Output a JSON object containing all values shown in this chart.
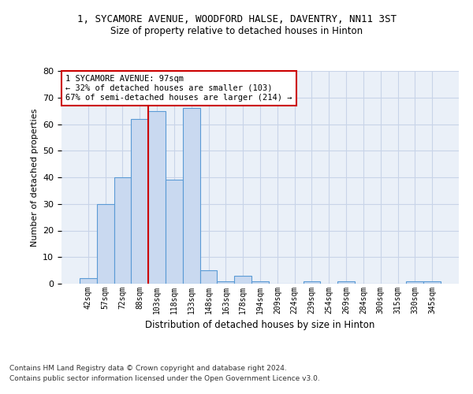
{
  "title_line1": "1, SYCAMORE AVENUE, WOODFORD HALSE, DAVENTRY, NN11 3ST",
  "title_line2": "Size of property relative to detached houses in Hinton",
  "xlabel": "Distribution of detached houses by size in Hinton",
  "ylabel": "Number of detached properties",
  "categories": [
    "42sqm",
    "57sqm",
    "72sqm",
    "88sqm",
    "103sqm",
    "118sqm",
    "133sqm",
    "148sqm",
    "163sqm",
    "178sqm",
    "194sqm",
    "209sqm",
    "224sqm",
    "239sqm",
    "254sqm",
    "269sqm",
    "284sqm",
    "300sqm",
    "315sqm",
    "330sqm",
    "345sqm"
  ],
  "values": [
    2,
    30,
    40,
    62,
    65,
    39,
    66,
    5,
    1,
    3,
    1,
    0,
    0,
    1,
    0,
    1,
    0,
    0,
    0,
    1,
    1
  ],
  "bar_color": "#c9d9f0",
  "bar_edge_color": "#5b9bd5",
  "bar_width": 1.0,
  "vline_x": 3.5,
  "annotation_text": "1 SYCAMORE AVENUE: 97sqm\n← 32% of detached houses are smaller (103)\n67% of semi-detached houses are larger (214) →",
  "annotation_box_color": "#ffffff",
  "annotation_box_edge_color": "#cc0000",
  "vline_color": "#cc0000",
  "ylim": [
    0,
    80
  ],
  "yticks": [
    0,
    10,
    20,
    30,
    40,
    50,
    60,
    70,
    80
  ],
  "grid_color": "#c8d4e8",
  "bg_color": "#eaf0f8",
  "footer1": "Contains HM Land Registry data © Crown copyright and database right 2024.",
  "footer2": "Contains public sector information licensed under the Open Government Licence v3.0."
}
